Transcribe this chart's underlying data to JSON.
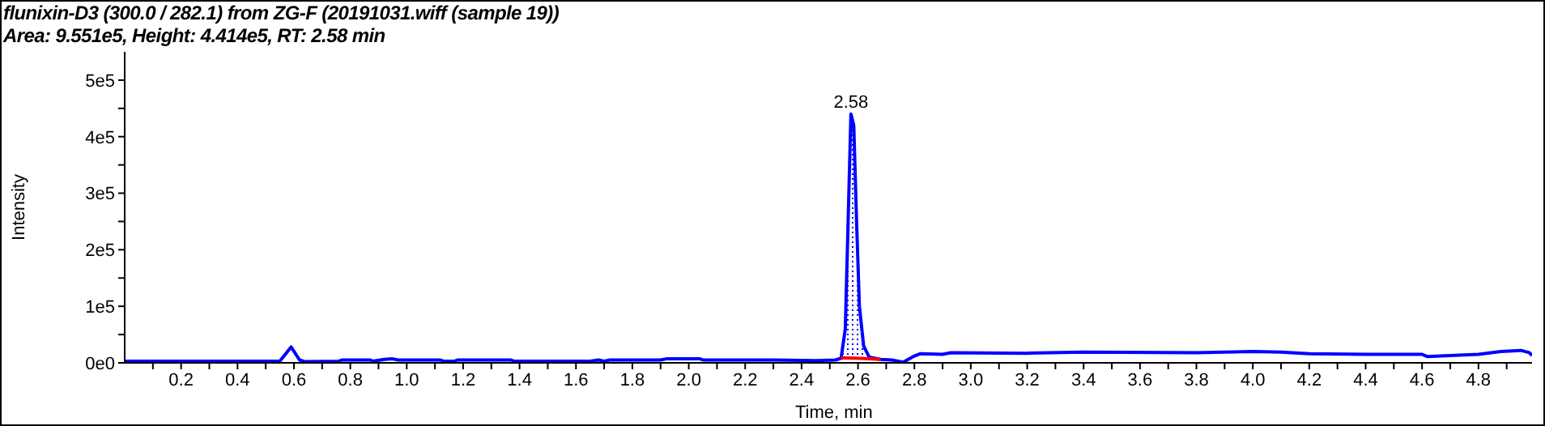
{
  "chart_data": {
    "type": "line",
    "title": "flunixin-D3 (300.0 / 282.1) from ZG-F (20191031.wiff (sample 19))",
    "subtitle": "Area: 9.551e5, Height: 4.414e5, RT: 2.58 min",
    "xlabel": "Time, min",
    "ylabel": "Intensity",
    "xlim": [
      0,
      4.99
    ],
    "ylim": [
      0,
      550000
    ],
    "xticks": [
      {
        "value": 0.1,
        "label": null
      },
      0.2,
      {
        "value": 0.3,
        "label": null
      },
      0.4,
      {
        "value": 0.5,
        "label": null
      },
      0.6,
      {
        "value": 0.7,
        "label": null
      },
      0.8,
      {
        "value": 0.9,
        "label": null
      },
      {
        "value": 1.0,
        "label": "1.0"
      },
      {
        "value": 1.1,
        "label": null
      },
      1.2,
      {
        "value": 1.3,
        "label": null
      },
      1.4,
      {
        "value": 1.5,
        "label": null
      },
      1.6,
      {
        "value": 1.7,
        "label": null
      },
      1.8,
      {
        "value": 1.9,
        "label": null
      },
      {
        "value": 2.0,
        "label": "2.0"
      },
      {
        "value": 2.1,
        "label": null
      },
      2.2,
      {
        "value": 2.3,
        "label": null
      },
      2.4,
      {
        "value": 2.5,
        "label": null
      },
      2.6,
      {
        "value": 2.7,
        "label": null
      },
      2.8,
      {
        "value": 2.9,
        "label": null
      },
      {
        "value": 3.0,
        "label": "3.0"
      },
      {
        "value": 3.1,
        "label": null
      },
      3.2,
      {
        "value": 3.3,
        "label": null
      },
      3.4,
      {
        "value": 3.5,
        "label": null
      },
      3.6,
      {
        "value": 3.7,
        "label": null
      },
      3.8,
      {
        "value": 3.9,
        "label": null
      },
      {
        "value": 4.0,
        "label": "4.0"
      },
      {
        "value": 4.1,
        "label": null
      },
      4.2,
      {
        "value": 4.3,
        "label": null
      },
      4.4,
      {
        "value": 4.5,
        "label": null
      },
      4.6,
      {
        "value": 4.7,
        "label": null
      },
      4.8,
      {
        "value": 4.9,
        "label": null
      }
    ],
    "yticks": [
      {
        "value": 0,
        "label": "0e0"
      },
      {
        "value": 50000,
        "label": null
      },
      {
        "value": 100000,
        "label": "1e5"
      },
      {
        "value": 150000,
        "label": null
      },
      {
        "value": 200000,
        "label": "2e5"
      },
      {
        "value": 250000,
        "label": null
      },
      {
        "value": 300000,
        "label": "3e5"
      },
      {
        "value": 350000,
        "label": null
      },
      {
        "value": 400000,
        "label": "4e5"
      },
      {
        "value": 450000,
        "label": null
      },
      {
        "value": 500000,
        "label": "5e5"
      }
    ],
    "marker": "none",
    "series": [
      {
        "color": "#0000ff",
        "x": [
          0.0,
          0.55,
          0.59,
          0.62,
          0.64,
          0.76,
          0.77,
          0.87,
          0.88,
          0.92,
          0.95,
          0.97,
          1.12,
          1.13,
          1.17,
          1.18,
          1.37,
          1.38,
          1.65,
          1.68,
          1.7,
          1.72,
          1.9,
          1.92,
          2.04,
          2.05,
          2.3,
          2.45,
          2.52,
          2.54,
          2.555,
          2.565,
          2.575,
          2.585,
          2.595,
          2.605,
          2.62,
          2.64,
          2.68,
          2.72,
          2.76,
          2.8,
          2.82,
          2.9,
          2.93,
          3.2,
          3.4,
          3.8,
          4.0,
          4.1,
          4.2,
          4.4,
          4.6,
          4.62,
          4.7,
          4.8,
          4.88,
          4.95,
          4.98,
          4.99
        ],
        "values": [
          3000,
          3000,
          28000,
          5000,
          2000,
          3000,
          5000,
          5000,
          3000,
          6000,
          7000,
          5000,
          5000,
          3000,
          3000,
          5000,
          5000,
          3000,
          3000,
          5000,
          3000,
          5000,
          5000,
          7000,
          7000,
          5000,
          5000,
          4000,
          5000,
          8000,
          60000,
          250000,
          440000,
          420000,
          250000,
          100000,
          30000,
          10000,
          6000,
          5000,
          1000,
          12000,
          16000,
          15000,
          18000,
          17000,
          19000,
          18000,
          20000,
          19000,
          16000,
          15000,
          15000,
          11000,
          13000,
          15000,
          20000,
          22000,
          18000,
          13000
        ]
      },
      {
        "type": "line",
        "color": "#ff0000",
        "x": [
          2.54,
          2.61,
          2.68
        ],
        "values": [
          9000,
          8000,
          6000
        ]
      },
      {
        "type": "area",
        "color": "#0000ff",
        "x": [
          2.54,
          2.555,
          2.565,
          2.575,
          2.585,
          2.595,
          2.605,
          2.62,
          2.64,
          2.68
        ],
        "values": [
          8000,
          60000,
          250000,
          440000,
          420000,
          250000,
          100000,
          30000,
          10000,
          6000
        ]
      }
    ],
    "annotations": [
      {
        "text": "2.58",
        "x": 2.575,
        "y": 440000
      }
    ]
  }
}
